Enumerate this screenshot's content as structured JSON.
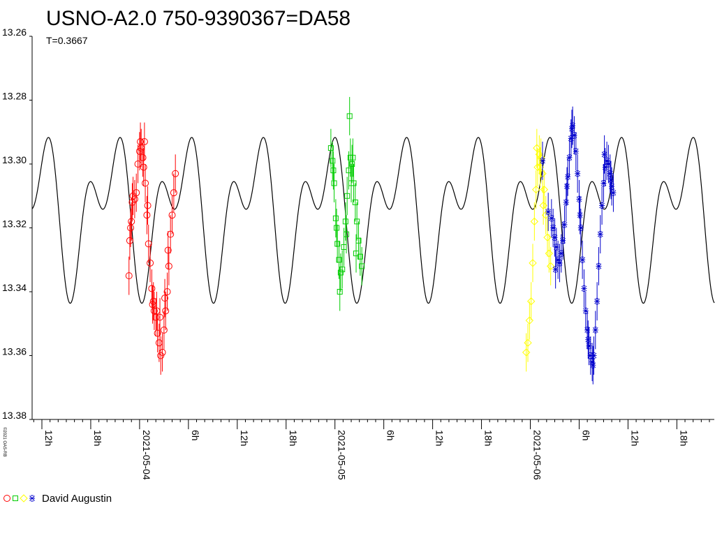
{
  "title": "USNO-A2.0 750-9390367=DA58",
  "period_text": "T=0.3667",
  "copyright": "©2021 OAS-RB",
  "legend_label": "David Augustin",
  "chart_data": {
    "type": "scatter",
    "ylim": [
      13.26,
      13.38
    ],
    "y_inverted": true,
    "y_ticks": [
      "13.26",
      "13.28",
      "13.30",
      "13.32",
      "13.34",
      "13.36",
      "13.38"
    ],
    "x_ticks": [
      "12h",
      "18h",
      "2021-05-04",
      "6h",
      "12h",
      "18h",
      "2021-05-05",
      "6h",
      "12h",
      "18h",
      "2021-05-06",
      "6h",
      "12h",
      "18h"
    ],
    "xlim_hours": [
      -13.2,
      70.6
    ],
    "model": {
      "mean": 13.3145,
      "amp_fundamental": 0.0165,
      "amp_harmonic": 0.0139,
      "period_days": 0.3667
    },
    "series": [
      {
        "marker": "circle",
        "color": "#ff0000",
        "points": [
          [
            -1.3,
            13.335,
            0.006
          ],
          [
            -1.2,
            13.324,
            0.006
          ],
          [
            -1.1,
            13.32,
            0.006
          ],
          [
            -1.0,
            13.318,
            0.006
          ],
          [
            -0.9,
            13.312,
            0.006
          ],
          [
            -0.8,
            13.31,
            0.006
          ],
          [
            -0.6,
            13.311,
            0.006
          ],
          [
            -0.4,
            13.309,
            0.006
          ],
          [
            -0.2,
            13.3,
            0.006
          ],
          [
            0.0,
            13.296,
            0.006
          ],
          [
            0.2,
            13.295,
            0.006
          ],
          [
            0.4,
            13.298,
            0.006
          ],
          [
            0.5,
            13.301,
            0.006
          ],
          [
            0.7,
            13.306,
            0.006
          ],
          [
            0.9,
            13.316,
            0.006
          ],
          [
            1.1,
            13.325,
            0.006
          ],
          [
            1.3,
            13.331,
            0.006
          ],
          [
            1.5,
            13.339,
            0.006
          ],
          [
            1.6,
            13.344,
            0.006
          ],
          [
            1.8,
            13.346,
            0.006
          ],
          [
            2.0,
            13.348,
            0.006
          ],
          [
            2.2,
            13.353,
            0.006
          ],
          [
            2.4,
            13.356,
            0.006
          ],
          [
            2.6,
            13.36,
            0.006
          ],
          [
            2.8,
            13.359,
            0.006
          ],
          [
            3.0,
            13.352,
            0.006
          ],
          [
            3.2,
            13.346,
            0.006
          ],
          [
            3.4,
            13.34,
            0.006
          ],
          [
            3.6,
            13.332,
            0.006
          ],
          [
            3.8,
            13.322,
            0.006
          ],
          [
            4.0,
            13.316,
            0.006
          ],
          [
            4.2,
            13.309,
            0.006
          ],
          [
            4.4,
            13.303,
            0.006
          ],
          [
            0.1,
            13.293,
            0.006
          ],
          [
            0.6,
            13.293,
            0.006
          ],
          [
            1.0,
            13.313,
            0.006
          ],
          [
            1.7,
            13.343,
            0.006
          ],
          [
            2.1,
            13.346,
            0.006
          ],
          [
            2.5,
            13.348,
            0.006
          ],
          [
            3.1,
            13.342,
            0.006
          ],
          [
            3.5,
            13.327,
            0.006
          ]
        ]
      },
      {
        "marker": "square",
        "color": "#00cc00",
        "points": [
          [
            23.5,
            13.295,
            0.006
          ],
          [
            23.7,
            13.299,
            0.006
          ],
          [
            23.9,
            13.306,
            0.006
          ],
          [
            24.1,
            13.317,
            0.006
          ],
          [
            24.3,
            13.325,
            0.006
          ],
          [
            24.5,
            13.33,
            0.006
          ],
          [
            24.7,
            13.334,
            0.006
          ],
          [
            24.9,
            13.333,
            0.006
          ],
          [
            25.1,
            13.326,
            0.006
          ],
          [
            25.3,
            13.318,
            0.006
          ],
          [
            25.5,
            13.31,
            0.006
          ],
          [
            25.7,
            13.302,
            0.006
          ],
          [
            25.9,
            13.298,
            0.006
          ],
          [
            26.1,
            13.3,
            0.006
          ],
          [
            26.3,
            13.306,
            0.006
          ],
          [
            26.5,
            13.312,
            0.006
          ],
          [
            26.7,
            13.318,
            0.006
          ],
          [
            26.9,
            13.324,
            0.006
          ],
          [
            27.1,
            13.329,
            0.006
          ],
          [
            27.3,
            13.332,
            0.006
          ],
          [
            24.6,
            13.34,
            0.006
          ],
          [
            25.8,
            13.285,
            0.006
          ],
          [
            26.0,
            13.306,
            0.006
          ],
          [
            26.6,
            13.328,
            0.006
          ],
          [
            23.8,
            13.302,
            0.006
          ],
          [
            24.2,
            13.32,
            0.006
          ],
          [
            25.4,
            13.322,
            0.006
          ],
          [
            26.2,
            13.298,
            0.006
          ]
        ]
      },
      {
        "marker": "diamond",
        "color": "#ffff00",
        "points": [
          [
            47.5,
            13.359,
            0.006
          ],
          [
            47.7,
            13.356,
            0.006
          ],
          [
            47.9,
            13.349,
            0.006
          ],
          [
            48.1,
            13.343,
            0.006
          ],
          [
            48.3,
            13.331,
            0.006
          ],
          [
            48.5,
            13.318,
            0.006
          ],
          [
            48.7,
            13.308,
            0.006
          ],
          [
            48.9,
            13.301,
            0.006
          ],
          [
            49.1,
            13.297,
            0.006
          ],
          [
            49.3,
            13.298,
            0.006
          ],
          [
            49.5,
            13.303,
            0.006
          ],
          [
            49.7,
            13.308,
            0.006
          ],
          [
            49.9,
            13.316,
            0.006
          ],
          [
            50.1,
            13.323,
            0.006
          ],
          [
            50.3,
            13.328,
            0.006
          ],
          [
            50.5,
            13.332,
            0.006
          ],
          [
            48.8,
            13.295,
            0.006
          ],
          [
            49.2,
            13.301,
            0.006
          ],
          [
            49.6,
            13.313,
            0.006
          ]
        ]
      },
      {
        "marker": "star",
        "color": "#0000cc",
        "points": [
          [
            50.6,
            13.317,
            0.006
          ],
          [
            50.8,
            13.32,
            0.006
          ],
          [
            51.0,
            13.323,
            0.006
          ],
          [
            51.2,
            13.326,
            0.006
          ],
          [
            51.4,
            13.33,
            0.006
          ],
          [
            51.6,
            13.331,
            0.006
          ],
          [
            51.8,
            13.328,
            0.006
          ],
          [
            52.0,
            13.324,
            0.006
          ],
          [
            52.2,
            13.319,
            0.006
          ],
          [
            52.4,
            13.312,
            0.006
          ],
          [
            52.6,
            13.304,
            0.006
          ],
          [
            52.8,
            13.298,
            0.006
          ],
          [
            53.0,
            13.292,
            0.006
          ],
          [
            53.2,
            13.288,
            0.006
          ],
          [
            53.4,
            13.291,
            0.006
          ],
          [
            53.6,
            13.296,
            0.006
          ],
          [
            53.8,
            13.303,
            0.006
          ],
          [
            54.0,
            13.311,
            0.006
          ],
          [
            54.2,
            13.32,
            0.006
          ],
          [
            54.4,
            13.33,
            0.006
          ],
          [
            54.6,
            13.339,
            0.006
          ],
          [
            54.8,
            13.346,
            0.006
          ],
          [
            55.0,
            13.352,
            0.006
          ],
          [
            55.2,
            13.357,
            0.006
          ],
          [
            55.4,
            13.36,
            0.006
          ],
          [
            55.6,
            13.362,
            0.006
          ],
          [
            55.8,
            13.36,
            0.006
          ],
          [
            56.0,
            13.352,
            0.006
          ],
          [
            56.2,
            13.343,
            0.006
          ],
          [
            56.4,
            13.332,
            0.006
          ],
          [
            56.6,
            13.322,
            0.006
          ],
          [
            56.8,
            13.313,
            0.006
          ],
          [
            57.0,
            13.306,
            0.006
          ],
          [
            57.2,
            13.301,
            0.006
          ],
          [
            57.4,
            13.299,
            0.006
          ],
          [
            57.6,
            13.3,
            0.006
          ],
          [
            57.8,
            13.303,
            0.006
          ],
          [
            58.0,
            13.307,
            0.006
          ],
          [
            58.2,
            13.309,
            0.006
          ],
          [
            49.5,
            13.299,
            0.006
          ],
          [
            50.2,
            13.315,
            0.006
          ],
          [
            51.1,
            13.333,
            0.006
          ],
          [
            52.5,
            13.307,
            0.006
          ],
          [
            53.1,
            13.289,
            0.006
          ],
          [
            54.1,
            13.316,
            0.006
          ],
          [
            55.1,
            13.355,
            0.006
          ],
          [
            55.7,
            13.363,
            0.006
          ],
          [
            57.1,
            13.297,
            0.006
          ],
          [
            57.9,
            13.305,
            0.006
          ]
        ]
      }
    ]
  }
}
